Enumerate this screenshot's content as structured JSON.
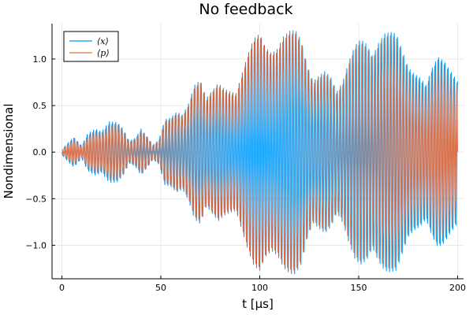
{
  "chart_data": {
    "type": "line",
    "title": "No feedback",
    "xlabel": "t [µs]",
    "ylabel": "Nondimensional",
    "xlim": [
      -5,
      203
    ],
    "ylim": [
      -1.36,
      1.38
    ],
    "x_ticks": [
      0,
      50,
      100,
      150,
      200
    ],
    "x_tick_labels": [
      "0",
      "50",
      "100",
      "150",
      "200"
    ],
    "y_ticks": [
      -1.0,
      -0.5,
      0.0,
      0.5,
      1.0
    ],
    "y_tick_labels": [
      "−1.0",
      "−0.5",
      "0.0",
      "0.5",
      "1.0"
    ],
    "grid": true,
    "legend_position": "top-left",
    "carrier_period_us": 1.6,
    "series": [
      {
        "name": "⟨x⟩",
        "color": "#009AFA",
        "envelope": {
          "t": [
            0,
            3,
            6,
            10,
            13,
            17,
            20,
            24,
            28,
            31,
            34,
            37,
            40,
            43,
            46,
            49,
            52,
            55,
            58,
            61,
            64,
            67,
            70,
            73,
            76,
            79,
            82,
            85,
            88,
            91,
            94,
            97,
            100,
            103,
            106,
            109,
            112,
            115,
            118,
            121,
            124,
            127,
            130,
            133,
            136,
            139,
            142,
            145,
            148,
            151,
            154,
            157,
            160,
            163,
            166,
            169,
            172,
            175,
            178,
            181,
            184,
            187,
            190,
            193,
            196,
            200
          ],
          "amplitude": [
            0.03,
            0.1,
            0.16,
            0.07,
            0.2,
            0.25,
            0.22,
            0.33,
            0.32,
            0.25,
            0.12,
            0.15,
            0.25,
            0.17,
            0.08,
            0.13,
            0.35,
            0.37,
            0.43,
            0.4,
            0.52,
            0.72,
            0.77,
            0.58,
            0.66,
            0.74,
            0.68,
            0.65,
            0.63,
            0.84,
            1.05,
            1.22,
            1.27,
            1.12,
            1.06,
            1.11,
            1.24,
            1.3,
            1.31,
            1.2,
            0.93,
            0.76,
            0.82,
            0.87,
            0.8,
            0.65,
            0.76,
            0.97,
            1.14,
            1.21,
            1.16,
            1.03,
            1.17,
            1.27,
            1.29,
            1.27,
            1.09,
            0.91,
            0.84,
            0.8,
            0.72,
            0.9,
            1.02,
            0.98,
            0.88,
            0.76
          ]
        }
      },
      {
        "name": "⟨p⟩",
        "color": "#E26F46",
        "envelope": {
          "t": [
            0,
            3,
            6,
            10,
            13,
            17,
            20,
            24,
            28,
            31,
            34,
            37,
            40,
            43,
            46,
            49,
            52,
            55,
            58,
            61,
            64,
            67,
            70,
            73,
            76,
            79,
            82,
            85,
            88,
            91,
            94,
            97,
            100,
            103,
            106,
            109,
            112,
            115,
            118,
            121,
            124,
            127,
            130,
            133,
            136,
            139,
            142,
            145,
            148,
            151,
            154,
            157,
            160,
            163,
            166,
            169,
            172,
            175,
            178,
            181,
            184,
            187,
            190,
            193,
            196,
            200
          ],
          "amplitude": [
            0.03,
            0.09,
            0.15,
            0.06,
            0.18,
            0.23,
            0.2,
            0.3,
            0.3,
            0.23,
            0.11,
            0.14,
            0.23,
            0.16,
            0.07,
            0.12,
            0.33,
            0.35,
            0.41,
            0.38,
            0.5,
            0.69,
            0.74,
            0.55,
            0.64,
            0.71,
            0.65,
            0.62,
            0.6,
            0.81,
            1.02,
            1.18,
            1.24,
            1.09,
            1.03,
            1.07,
            1.2,
            1.26,
            1.27,
            1.16,
            0.9,
            0.73,
            0.79,
            0.84,
            0.77,
            0.62,
            0.73,
            0.94,
            1.1,
            1.17,
            1.12,
            1.0,
            1.13,
            1.23,
            1.25,
            1.23,
            1.05,
            0.88,
            0.81,
            0.77,
            0.69,
            0.87,
            0.99,
            0.95,
            0.85,
            0.73
          ]
        }
      }
    ]
  }
}
